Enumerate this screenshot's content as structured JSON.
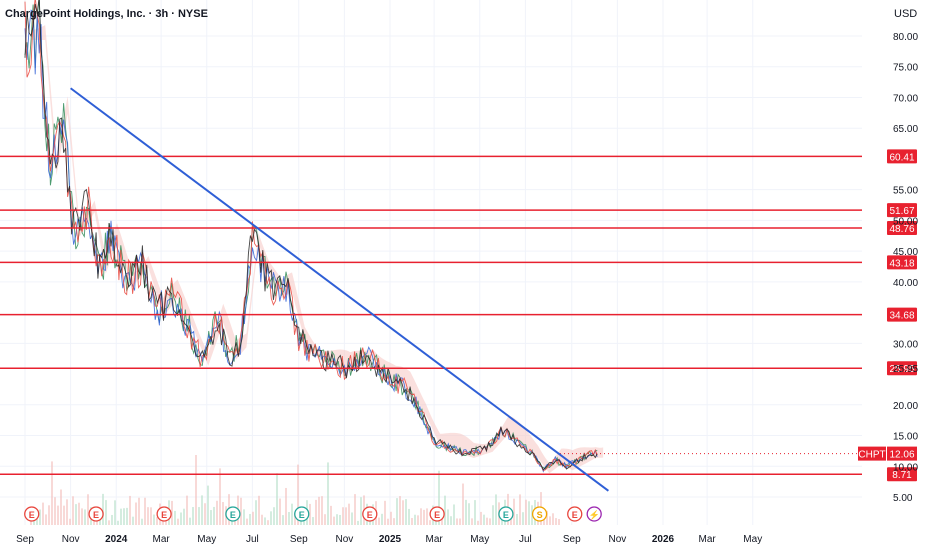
{
  "header": {
    "title": "ChargePoint Holdings, Inc. · 3h · NYSE",
    "currency": "USD"
  },
  "chart_data": {
    "type": "line",
    "title": "ChargePoint Holdings, Inc. · 3h · NYSE",
    "ylim": [
      3.0,
      82.0
    ],
    "y_ticks": [
      "80.00",
      "75.00",
      "70.00",
      "65.00",
      "55.00",
      "50.00",
      "45.00",
      "40.00",
      "30.00",
      "25.95",
      "20.00",
      "15.00",
      "10.00",
      "5.00"
    ],
    "x_ticks": [
      "Sep",
      "Nov",
      "2024",
      "Mar",
      "May",
      "Jul",
      "Sep",
      "Nov",
      "2025",
      "Mar",
      "May",
      "Jul",
      "Sep",
      "Nov",
      "2026",
      "Mar",
      "May"
    ],
    "horizontal_levels": [
      60.41,
      51.67,
      48.76,
      43.18,
      34.68,
      25.95,
      8.71
    ],
    "trendline": {
      "start": {
        "x": "2023-11-01",
        "y": 71.5
      },
      "end": {
        "x": "2025-10-20",
        "y": 6.0
      }
    },
    "current_price": {
      "symbol": "CHPT",
      "value": "12.06"
    },
    "price_series_approx": [
      [
        "2023-09-01",
        80
      ],
      [
        "2023-09-20",
        80
      ],
      [
        "2023-10-05",
        58
      ],
      [
        "2023-10-20",
        68
      ],
      [
        "2023-11-05",
        48
      ],
      [
        "2023-11-25",
        52
      ],
      [
        "2023-12-10",
        42
      ],
      [
        "2023-12-25",
        47
      ],
      [
        "2024-01-15",
        40
      ],
      [
        "2024-02-05",
        43
      ],
      [
        "2024-02-25",
        35
      ],
      [
        "2024-03-15",
        38
      ],
      [
        "2024-04-05",
        33
      ],
      [
        "2024-04-25",
        27
      ],
      [
        "2024-05-15",
        34
      ],
      [
        "2024-06-01",
        28
      ],
      [
        "2024-06-15",
        30
      ],
      [
        "2024-07-01",
        47
      ],
      [
        "2024-07-15",
        42
      ],
      [
        "2024-08-01",
        38
      ],
      [
        "2024-08-15",
        39
      ],
      [
        "2024-09-01",
        31
      ],
      [
        "2024-09-20",
        28
      ],
      [
        "2024-10-10",
        27
      ],
      [
        "2024-11-01",
        26
      ],
      [
        "2024-12-01",
        28
      ],
      [
        "2025-01-01",
        24
      ],
      [
        "2025-01-20",
        23
      ],
      [
        "2025-02-10",
        19
      ],
      [
        "2025-03-01",
        14
      ],
      [
        "2025-03-20",
        13
      ],
      [
        "2025-04-15",
        12
      ],
      [
        "2025-05-10",
        13
      ],
      [
        "2025-06-01",
        16
      ],
      [
        "2025-06-20",
        14
      ],
      [
        "2025-07-10",
        12
      ],
      [
        "2025-07-25",
        9.5
      ],
      [
        "2025-08-10",
        11
      ],
      [
        "2025-08-25",
        10
      ],
      [
        "2025-09-10",
        11
      ],
      [
        "2025-09-25",
        12
      ],
      [
        "2025-10-05",
        12.06
      ]
    ],
    "event_markers": [
      {
        "date": "2023-09-10",
        "label": "E"
      },
      {
        "date": "2023-12-05",
        "label": "E"
      },
      {
        "date": "2024-03-05",
        "label": "E"
      },
      {
        "date": "2024-06-05",
        "label": "E"
      },
      {
        "date": "2024-09-05",
        "label": "E"
      },
      {
        "date": "2024-12-05",
        "label": "E"
      },
      {
        "date": "2025-03-05",
        "label": "E"
      },
      {
        "date": "2025-06-05",
        "label": "E"
      },
      {
        "date": "2025-07-20",
        "label": "S"
      },
      {
        "date": "2025-09-05",
        "label": "E"
      },
      {
        "date": "2025-10-01",
        "label": "⚡"
      }
    ],
    "colors": {
      "levels": "#e8212f",
      "trendline": "#2f5fd6",
      "cloud": "#f5c6c3",
      "series": [
        "#2e8b57",
        "#2f5fd6",
        "#e8453c",
        "#222222"
      ]
    }
  }
}
